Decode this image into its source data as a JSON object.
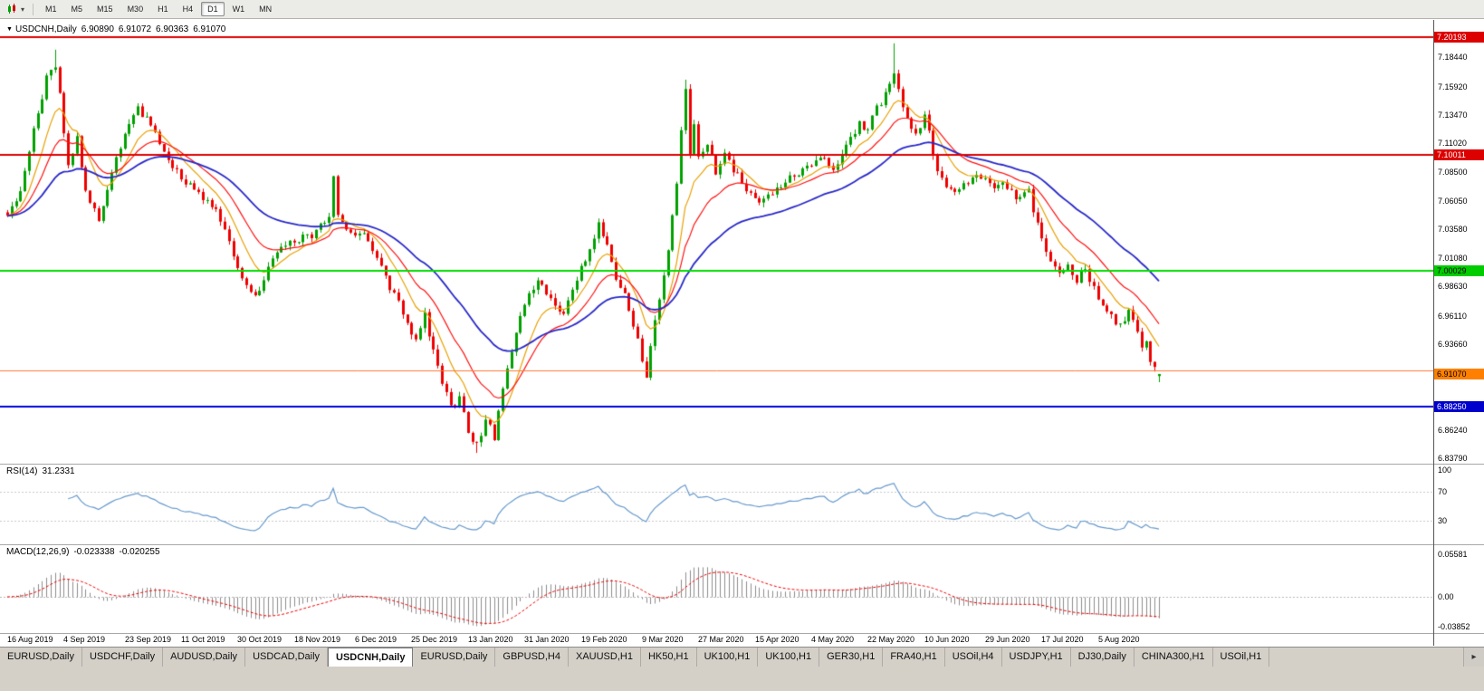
{
  "toolbar": {
    "chart_menu_arrow": "▾",
    "timeframes": [
      "M1",
      "M5",
      "M15",
      "M30",
      "H1",
      "H4",
      "D1",
      "W1",
      "MN"
    ],
    "active_timeframe": "D1"
  },
  "chart": {
    "collapse_icon": "▼",
    "symbol_title": "USDCNH,Daily",
    "ohlc": {
      "open": "6.90890",
      "high": "6.91072",
      "low": "6.90363",
      "close": "6.91070"
    }
  },
  "chart_data": {
    "type": "candlestick",
    "symbol": "USDCNH",
    "period": "Daily",
    "price_axis": {
      "labels": [
        "7.18440",
        "7.15920",
        "7.13470",
        "7.11020",
        "7.08500",
        "7.06050",
        "7.03580",
        "7.01080",
        "6.98630",
        "6.96110",
        "6.93660",
        "6.86240",
        "6.83790"
      ],
      "badges": [
        {
          "text": "7.20193",
          "price": 7.20193,
          "bg": "#dd0000",
          "fg": "#ffffff"
        },
        {
          "text": "7.10011",
          "price": 7.10011,
          "bg": "#dd0000",
          "fg": "#ffffff"
        },
        {
          "text": "7.00029",
          "price": 7.00029,
          "bg": "#00cc00",
          "fg": "#000000"
        },
        {
          "text": "6.91070",
          "price": 6.9107,
          "bg": "#ff8000",
          "fg": "#000000"
        },
        {
          "text": "6.88250",
          "price": 6.8825,
          "bg": "#0000cc",
          "fg": "#ffffff"
        }
      ]
    },
    "h_lines": [
      {
        "price": 7.20193,
        "color": "#dd0000",
        "width": 2
      },
      {
        "price": 7.10011,
        "color": "#dd0000",
        "width": 2
      },
      {
        "price": 7.00029,
        "color": "#00dd00",
        "width": 2
      },
      {
        "price": 6.914,
        "color": "#ff7733",
        "width": 1
      },
      {
        "price": 6.8825,
        "color": "#0000dd",
        "width": 2
      }
    ],
    "x_labels": [
      {
        "text": "16 Aug 2019",
        "day": 0
      },
      {
        "text": "4 Sep 2019",
        "day": 13
      },
      {
        "text": "23 Sep 2019",
        "day": 27
      },
      {
        "text": "11 Oct 2019",
        "day": 40
      },
      {
        "text": "30 Oct 2019",
        "day": 53
      },
      {
        "text": "18 Nov 2019",
        "day": 66
      },
      {
        "text": "6 Dec 2019",
        "day": 80
      },
      {
        "text": "25 Dec 2019",
        "day": 93
      },
      {
        "text": "13 Jan 2020",
        "day": 106
      },
      {
        "text": "31 Jan 2020",
        "day": 119
      },
      {
        "text": "19 Feb 2020",
        "day": 132
      },
      {
        "text": "9 Mar 2020",
        "day": 146
      },
      {
        "text": "27 Mar 2020",
        "day": 159
      },
      {
        "text": "15 Apr 2020",
        "day": 172
      },
      {
        "text": "4 May 2020",
        "day": 185
      },
      {
        "text": "22 May 2020",
        "day": 198
      },
      {
        "text": "10 Jun 2020",
        "day": 211
      },
      {
        "text": "29 Jun 2020",
        "day": 225
      },
      {
        "text": "17 Jul 2020",
        "day": 238
      },
      {
        "text": "5 Aug 2020",
        "day": 251
      }
    ],
    "candles": {
      "count": 266,
      "noise": 0.0075,
      "up_color": "#00a000",
      "down_color": "#ee0000",
      "waypoints": [
        [
          0,
          7.045
        ],
        [
          3,
          7.07
        ],
        [
          6,
          7.12
        ],
        [
          9,
          7.165
        ],
        [
          11,
          7.178
        ],
        [
          12,
          7.15
        ],
        [
          14,
          7.09
        ],
        [
          16,
          7.115
        ],
        [
          18,
          7.07
        ],
        [
          21,
          7.042
        ],
        [
          24,
          7.085
        ],
        [
          27,
          7.12
        ],
        [
          30,
          7.142
        ],
        [
          33,
          7.125
        ],
        [
          36,
          7.1
        ],
        [
          40,
          7.08
        ],
        [
          44,
          7.065
        ],
        [
          48,
          7.05
        ],
        [
          52,
          7.015
        ],
        [
          55,
          6.985
        ],
        [
          57,
          6.975
        ],
        [
          60,
          7.005
        ],
        [
          63,
          7.02
        ],
        [
          66,
          7.026
        ],
        [
          70,
          7.03
        ],
        [
          74,
          7.05
        ],
        [
          75,
          7.085
        ],
        [
          76,
          7.045
        ],
        [
          78,
          7.035
        ],
        [
          82,
          7.03
        ],
        [
          85,
          7.01
        ],
        [
          88,
          6.985
        ],
        [
          91,
          6.965
        ],
        [
          94,
          6.94
        ],
        [
          96,
          6.962
        ],
        [
          98,
          6.93
        ],
        [
          100,
          6.905
        ],
        [
          102,
          6.882
        ],
        [
          104,
          6.89
        ],
        [
          106,
          6.862
        ],
        [
          108,
          6.848
        ],
        [
          110,
          6.872
        ],
        [
          112,
          6.856
        ],
        [
          114,
          6.895
        ],
        [
          116,
          6.932
        ],
        [
          118,
          6.962
        ],
        [
          120,
          6.978
        ],
        [
          122,
          6.992
        ],
        [
          125,
          6.978
        ],
        [
          128,
          6.963
        ],
        [
          131,
          6.992
        ],
        [
          134,
          7.018
        ],
        [
          136,
          7.042
        ],
        [
          138,
          7.02
        ],
        [
          140,
          6.995
        ],
        [
          142,
          6.978
        ],
        [
          144,
          6.955
        ],
        [
          146,
          6.922
        ],
        [
          147,
          6.908
        ],
        [
          148,
          6.938
        ],
        [
          150,
          6.972
        ],
        [
          152,
          7.015
        ],
        [
          154,
          7.075
        ],
        [
          155,
          7.125
        ],
        [
          156,
          7.155
        ],
        [
          157,
          7.1
        ],
        [
          158,
          7.125
        ],
        [
          159,
          7.095
        ],
        [
          161,
          7.11
        ],
        [
          163,
          7.082
        ],
        [
          165,
          7.105
        ],
        [
          167,
          7.088
        ],
        [
          170,
          7.072
        ],
        [
          173,
          7.058
        ],
        [
          176,
          7.068
        ],
        [
          179,
          7.078
        ],
        [
          182,
          7.085
        ],
        [
          185,
          7.092
        ],
        [
          188,
          7.1
        ],
        [
          190,
          7.088
        ],
        [
          193,
          7.108
        ],
        [
          196,
          7.128
        ],
        [
          198,
          7.122
        ],
        [
          200,
          7.14
        ],
        [
          202,
          7.152
        ],
        [
          204,
          7.172
        ],
        [
          205,
          7.155
        ],
        [
          207,
          7.132
        ],
        [
          209,
          7.118
        ],
        [
          211,
          7.135
        ],
        [
          213,
          7.1
        ],
        [
          215,
          7.078
        ],
        [
          218,
          7.068
        ],
        [
          221,
          7.075
        ],
        [
          224,
          7.082
        ],
        [
          227,
          7.068
        ],
        [
          229,
          7.078
        ],
        [
          232,
          7.062
        ],
        [
          235,
          7.068
        ],
        [
          238,
          7.025
        ],
        [
          241,
          7.0
        ],
        [
          244,
          7.005
        ],
        [
          246,
          6.992
        ],
        [
          248,
          7.002
        ],
        [
          250,
          6.985
        ],
        [
          252,
          6.972
        ],
        [
          254,
          6.962
        ],
        [
          256,
          6.952
        ],
        [
          258,
          6.963
        ],
        [
          260,
          6.945
        ],
        [
          261,
          6.935
        ],
        [
          262,
          6.942
        ],
        [
          263,
          6.922
        ],
        [
          264,
          6.916
        ],
        [
          265,
          6.9107
        ]
      ],
      "forced_bars": {
        "11": {
          "h": 7.191
        },
        "108": {
          "l": 6.8425
        },
        "156": {
          "h": 7.1651
        },
        "204": {
          "h": 7.1965
        },
        "265": {
          "o": 6.9089,
          "h": 6.91072,
          "l": 6.90363,
          "c": 6.9107
        }
      }
    },
    "moving_averages": [
      {
        "period": 9,
        "color": "#e8a000",
        "width": 1.2
      },
      {
        "period": 18,
        "color": "#ff1010",
        "width": 1.2
      },
      {
        "period": 40,
        "color": "#2828c8",
        "width": 1.8
      }
    ],
    "rsi": {
      "name": "RSI(14)",
      "value": "31.2331",
      "period": 14,
      "color": "#6699cc",
      "levels": [
        70,
        30
      ],
      "axis_labels": [
        "100",
        "70",
        "30"
      ]
    },
    "macd": {
      "name": "MACD(12,26,9)",
      "value_main": "-0.023338",
      "value_signal": "-0.020255",
      "fast": 12,
      "slow": 26,
      "signal": 9,
      "histogram_color": "#8c8c8c",
      "signal_color": "#ee0000",
      "axis_labels": [
        "0.05581",
        "0.00",
        "-0.03852"
      ]
    }
  },
  "tabs": {
    "items": [
      "EURUSD,Daily",
      "USDCHF,Daily",
      "AUDUSD,Daily",
      "USDCAD,Daily",
      "USDCNH,Daily",
      "EURUSD,Daily",
      "GBPUSD,H4",
      "XAUUSD,H1",
      "HK50,H1",
      "UK100,H1",
      "UK100,H1",
      "GER30,H1",
      "FRA40,H1",
      "USOil,H4",
      "USDJPY,H1",
      "DJ30,Daily",
      "CHINA300,H1",
      "USOil,H1"
    ],
    "active_index": 4,
    "scroll_icon": "▸"
  }
}
